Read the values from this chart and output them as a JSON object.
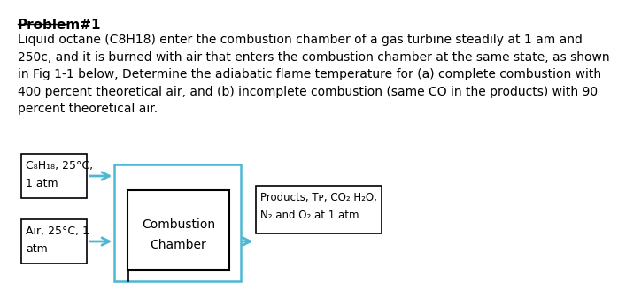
{
  "title": "Problem#1",
  "paragraph": "Liquid octane (C8H18) enter the combustion chamber of a gas turbine steadily at 1 am and\n250c, and it is burned with air that enters the combustion chamber at the same state, as shown\nin Fig 1-1 below, Determine the adiabatic flame temperature for (a) complete combustion with\n400 percent theoretical air, and (b) incomplete combustion (same CO in the products) with 90\npercent theoretical air.",
  "box_fuel_text_line1": "C₈H₁₈, 25°C,",
  "box_fuel_text_line2": "1 atm",
  "box_air_text_line1": "Air, 25°C, 1",
  "box_air_text_line2": "atm",
  "box_combustion_line1": "Combustion",
  "box_combustion_line2": "Chamber",
  "box_products_line1": "Products, Tᴘ, CO₂ H₂O,",
  "box_products_line2": "N₂ and O₂ at 1 atm",
  "bg_color": "#ffffff",
  "text_color": "#000000",
  "arrow_color": "#4db8d4",
  "font_size_title": 11,
  "font_size_body": 10,
  "font_size_box": 9
}
